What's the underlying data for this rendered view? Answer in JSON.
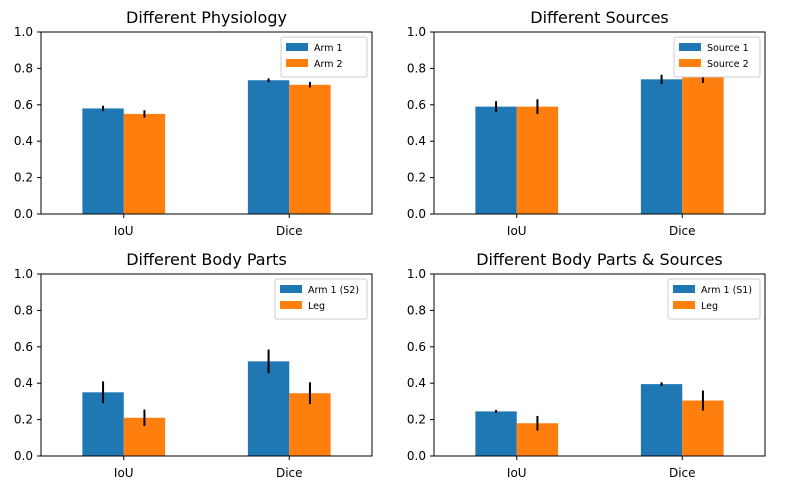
{
  "chart_data": [
    {
      "type": "bar",
      "title": "Different Physiology",
      "categories": [
        "IoU",
        "Dice"
      ],
      "series": [
        {
          "name": "Arm 1",
          "color": "#1f77b4",
          "values": [
            0.58,
            0.735
          ],
          "errors": [
            0.015,
            0.01
          ]
        },
        {
          "name": "Arm 2",
          "color": "#ff7f0e",
          "values": [
            0.55,
            0.71
          ],
          "errors": [
            0.02,
            0.015
          ]
        }
      ],
      "ylim": [
        0,
        1.0
      ],
      "yticks": [
        "0.0",
        "0.2",
        "0.4",
        "0.6",
        "0.8",
        "1.0"
      ],
      "legend": "top-right",
      "grid": false
    },
    {
      "type": "bar",
      "title": "Different Sources",
      "categories": [
        "IoU",
        "Dice"
      ],
      "series": [
        {
          "name": "Source 1",
          "color": "#1f77b4",
          "values": [
            0.59,
            0.74
          ],
          "errors": [
            0.03,
            0.025
          ]
        },
        {
          "name": "Source 2",
          "color": "#ff7f0e",
          "values": [
            0.59,
            0.75
          ],
          "errors": [
            0.04,
            0.03
          ]
        }
      ],
      "ylim": [
        0,
        1.0
      ],
      "yticks": [
        "0.0",
        "0.2",
        "0.4",
        "0.6",
        "0.8",
        "1.0"
      ],
      "legend": "top-right",
      "grid": false
    },
    {
      "type": "bar",
      "title": "Different Body Parts",
      "categories": [
        "IoU",
        "Dice"
      ],
      "series": [
        {
          "name": "Arm 1 (S2)",
          "color": "#1f77b4",
          "values": [
            0.35,
            0.52
          ],
          "errors": [
            0.06,
            0.065
          ]
        },
        {
          "name": "Leg",
          "color": "#ff7f0e",
          "values": [
            0.21,
            0.345
          ],
          "errors": [
            0.045,
            0.06
          ]
        }
      ],
      "ylim": [
        0,
        1.0
      ],
      "yticks": [
        "0.0",
        "0.2",
        "0.4",
        "0.6",
        "0.8",
        "1.0"
      ],
      "legend": "top-right",
      "grid": false
    },
    {
      "type": "bar",
      "title": "Different Body Parts & Sources",
      "categories": [
        "IoU",
        "Dice"
      ],
      "series": [
        {
          "name": "Arm 1 (S1)",
          "color": "#1f77b4",
          "values": [
            0.245,
            0.395
          ],
          "errors": [
            0.008,
            0.01
          ]
        },
        {
          "name": "Leg",
          "color": "#ff7f0e",
          "values": [
            0.18,
            0.305
          ],
          "errors": [
            0.04,
            0.055
          ]
        }
      ],
      "ylim": [
        0,
        1.0
      ],
      "yticks": [
        "0.0",
        "0.2",
        "0.4",
        "0.6",
        "0.8",
        "1.0"
      ],
      "legend": "top-right",
      "grid": false
    }
  ]
}
